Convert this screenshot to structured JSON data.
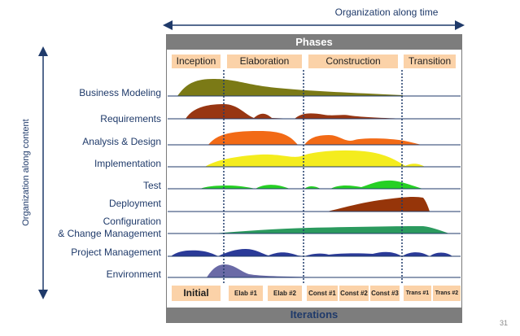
{
  "captions": {
    "top": "Organization along time",
    "side": "Organization along  content"
  },
  "header": {
    "phases": "Phases"
  },
  "footer": {
    "iterations": "Iterations"
  },
  "phases": [
    {
      "label": "Inception"
    },
    {
      "label": "Elaboration"
    },
    {
      "label": "Construction"
    },
    {
      "label": "Transition"
    }
  ],
  "disciplines": [
    {
      "label": "Business Modeling"
    },
    {
      "label": "Requirements"
    },
    {
      "label": "Analysis & Design"
    },
    {
      "label": "Implementation"
    },
    {
      "label": "Test"
    },
    {
      "label": "Deployment"
    },
    {
      "label": "Configuration",
      "label2": "& Change Management"
    },
    {
      "label": "Project Management"
    },
    {
      "label": "Environment"
    }
  ],
  "iterations": [
    {
      "label": "Initial"
    },
    {
      "label": "Elab #1"
    },
    {
      "label": "Elab #2"
    },
    {
      "label": "Const #1"
    },
    {
      "label": "Const #2"
    },
    {
      "label": "Const #3"
    },
    {
      "label": "Trans #1"
    },
    {
      "label": "Trans #2"
    }
  ],
  "colors": {
    "business": "#7b7a16",
    "requirements": "#983612",
    "analysis": "#f26a16",
    "implementation": "#f4ec1e",
    "test": "#26d024",
    "deployment": "#963509",
    "config": "#2b9a5e",
    "pm": "#2a3a98",
    "environment": "#6a6aa6",
    "divider": "#1f3a6a",
    "bar": "#7d7d7d",
    "tag": "#fbd2a8"
  },
  "page_number": "31"
}
